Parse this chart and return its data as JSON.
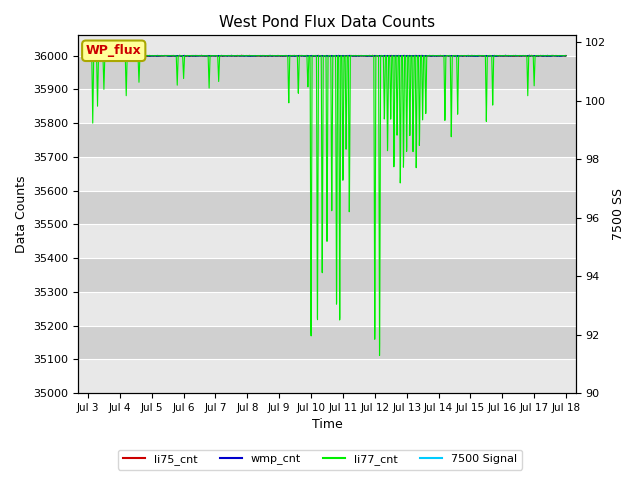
{
  "title": "West Pond Flux Data Counts",
  "xlabel": "Time",
  "ylabel_left": "Data Counts",
  "ylabel_right": "7500 SS",
  "ylim_left": [
    35000,
    36060
  ],
  "ylim_right": [
    90,
    102.24
  ],
  "xtick_labels": [
    "Jul 3",
    "Jul 4",
    "Jul 5",
    "Jul 6",
    "Jul 7",
    "Jul 8",
    "Jul 9",
    "Jul 10",
    "Jul 11",
    "Jul 12",
    "Jul 13",
    "Jul 14",
    "Jul 15",
    "Jul 16",
    "Jul 17",
    "Jul 18"
  ],
  "annotation_text": "WP_flux",
  "annotation_color": "#cc0000",
  "annotation_bg": "#ffff99",
  "annotation_border": "#aaa800",
  "colors": {
    "li75_cnt": "#cc0000",
    "wmp_cnt": "#0000cc",
    "li77_cnt": "#00ee00",
    "signal_7500": "#00ccff"
  },
  "legend_labels": [
    "li75_cnt",
    "wmp_cnt",
    "li77_cnt",
    "7500 Signal"
  ],
  "bg_light": "#e8e8e8",
  "bg_dark": "#d0d0d0",
  "grid_color": "#ffffff",
  "band_values": [
    35000,
    35100,
    35200,
    35300,
    35400,
    35500,
    35600,
    35700,
    35800,
    35900,
    36000
  ]
}
